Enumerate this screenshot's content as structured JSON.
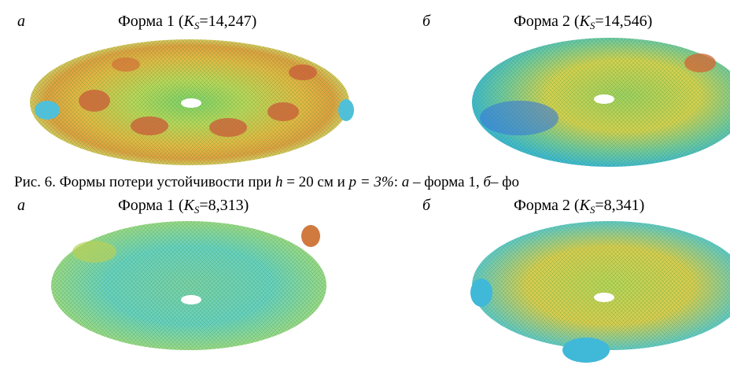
{
  "panels": [
    {
      "label": "а",
      "title": {
        "prefix": "Форма 1 (",
        "symbol": "K",
        "subscript": "S",
        "suffix": "=14,247)"
      }
    },
    {
      "label": "б",
      "title": {
        "prefix": "Форма 2 (",
        "symbol": "K",
        "subscript": "S",
        "suffix": "=14,546)"
      }
    },
    {
      "label": "а",
      "title": {
        "prefix": "Форма 1 (",
        "symbol": "K",
        "subscript": "S",
        "suffix": "=8,313)"
      }
    },
    {
      "label": "б",
      "title": {
        "prefix": "Форма 2 (",
        "symbol": "K",
        "subscript": "S",
        "suffix": "=8,341)"
      }
    }
  ],
  "caption": {
    "lead": "Рис. 6. Формы потери устойчивости при ",
    "h": "h",
    "mid": " = 20 см и ",
    "p": "p = 3%",
    "colon": ": ",
    "a": "а",
    "form1": " – форма 1,  ",
    "b": "б",
    "tail": "– фо"
  }
}
